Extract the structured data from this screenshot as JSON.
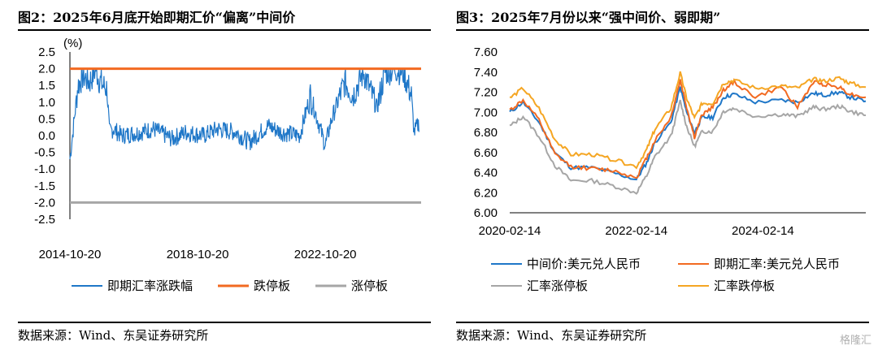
{
  "charts": [
    {
      "title": "图2：2025年6月底开始即期汇价“偏离”中间价",
      "source": "数据来源：Wind、东吴证券研究所",
      "chart_data": {
        "type": "line",
        "unit_label": "(%)",
        "y_ticks": [
          "2.5",
          "2.0",
          "1.5",
          "1.0",
          "0.5",
          "0.0",
          "-0.5",
          "-1.0",
          "-1.5",
          "-2.0",
          "-2.5"
        ],
        "ylim": [
          -2.5,
          2.5
        ],
        "x_ticks": [
          "2014-10-20",
          "2018-10-20",
          "2022-10-20"
        ],
        "x_range": [
          "2014-10-20",
          "2025-10-20"
        ],
        "series": [
          {
            "name": "即期汇率涨跌幅",
            "color": "#1f77c8",
            "x": [
              "2014-10-20",
              "2015-01-20",
              "2015-03-20",
              "2015-06-01",
              "2015-08-11",
              "2015-09-15",
              "2015-11-01",
              "2015-12-20",
              "2016-01-15",
              "2016-03-01",
              "2016-06-01",
              "2017-01-01",
              "2017-06-01",
              "2018-01-01",
              "2018-06-01",
              "2019-01-01",
              "2019-06-01",
              "2020-01-01",
              "2020-06-01",
              "2021-01-01",
              "2021-06-01",
              "2022-01-01",
              "2022-05-01",
              "2022-10-20",
              "2023-01-01",
              "2023-06-01",
              "2023-09-01",
              "2024-01-01",
              "2024-06-01",
              "2024-09-01",
              "2025-01-01",
              "2025-04-01",
              "2025-06-30",
              "2025-08-01",
              "2025-10-01"
            ],
            "y": [
              -0.7,
              1.5,
              1.8,
              1.6,
              2.0,
              1.7,
              1.5,
              1.4,
              0.1,
              0.2,
              0.0,
              0.1,
              0.2,
              -0.1,
              0.1,
              0.0,
              0.2,
              0.1,
              -0.2,
              0.3,
              0.1,
              0.0,
              1.2,
              -0.3,
              0.5,
              1.6,
              1.2,
              1.9,
              0.8,
              1.9,
              2.0,
              1.9,
              1.2,
              0.1,
              0.4
            ]
          },
          {
            "name": "跌停板",
            "color": "#f26a21",
            "x": [
              "2014-10-20",
              "2025-10-20"
            ],
            "y": [
              2.0,
              2.0
            ]
          },
          {
            "name": "涨停板",
            "color": "#a6a6a6",
            "x": [
              "2014-10-20",
              "2025-10-20"
            ],
            "y": [
              -2.0,
              -2.0
            ]
          }
        ],
        "legend_position": "bottom"
      }
    },
    {
      "title": "图3：2025年7月份以来“强中间价、弱即期”",
      "source": "数据来源：Wind、东吴证券研究所",
      "chart_data": {
        "type": "line",
        "y_ticks": [
          "7.60",
          "7.40",
          "7.20",
          "7.00",
          "6.80",
          "6.60",
          "6.40",
          "6.20",
          "6.00"
        ],
        "ylim": [
          6.0,
          7.6
        ],
        "x_ticks": [
          "2020-02-14",
          "2022-02-14",
          "2024-02-14"
        ],
        "x_range": [
          "2020-02-14",
          "2025-09-30"
        ],
        "series": [
          {
            "name": "中间价:美元兑人民币",
            "color": "#1f77c8",
            "x": [
              "2020-02-14",
              "2020-05-01",
              "2020-08-01",
              "2020-11-01",
              "2021-02-01",
              "2021-06-01",
              "2021-10-01",
              "2022-02-14",
              "2022-04-15",
              "2022-06-01",
              "2022-09-01",
              "2022-10-25",
              "2022-12-01",
              "2023-01-15",
              "2023-03-01",
              "2023-05-01",
              "2023-07-01",
              "2023-09-01",
              "2024-01-01",
              "2024-06-01",
              "2024-09-01",
              "2024-12-01",
              "2025-02-01",
              "2025-05-01",
              "2025-07-01",
              "2025-09-30"
            ],
            "y": [
              7.0,
              7.1,
              6.9,
              6.6,
              6.45,
              6.45,
              6.4,
              6.33,
              6.5,
              6.7,
              6.9,
              7.25,
              7.0,
              6.8,
              6.95,
              6.95,
              7.15,
              7.18,
              7.1,
              7.12,
              7.1,
              7.19,
              7.17,
              7.2,
              7.15,
              7.11
            ]
          },
          {
            "name": "即期汇率:美元兑人民币",
            "color": "#f26a21",
            "x": [
              "2020-02-14",
              "2020-05-01",
              "2020-08-01",
              "2020-11-01",
              "2021-02-01",
              "2021-06-01",
              "2021-10-01",
              "2022-02-14",
              "2022-04-15",
              "2022-06-01",
              "2022-09-01",
              "2022-10-25",
              "2022-12-01",
              "2023-01-15",
              "2023-03-01",
              "2023-05-01",
              "2023-07-01",
              "2023-09-01",
              "2024-01-01",
              "2024-06-01",
              "2024-09-01",
              "2024-12-01",
              "2025-02-01",
              "2025-05-01",
              "2025-07-01",
              "2025-09-30"
            ],
            "y": [
              7.02,
              7.12,
              6.92,
              6.58,
              6.46,
              6.44,
              6.42,
              6.35,
              6.55,
              6.72,
              6.95,
              7.32,
              7.05,
              6.75,
              6.98,
              7.05,
              7.22,
              7.3,
              7.15,
              7.25,
              7.05,
              7.3,
              7.28,
              7.25,
              7.18,
              7.15
            ]
          },
          {
            "name": "汇率涨停板",
            "color": "#a6a6a6",
            "x": [
              "2020-02-14",
              "2020-05-01",
              "2020-08-01",
              "2020-11-01",
              "2021-02-01",
              "2021-06-01",
              "2021-10-01",
              "2022-02-14",
              "2022-04-15",
              "2022-06-01",
              "2022-09-01",
              "2022-10-25",
              "2022-12-01",
              "2023-01-15",
              "2023-03-01",
              "2023-05-01",
              "2023-07-01",
              "2023-09-01",
              "2024-01-01",
              "2024-06-01",
              "2024-09-01",
              "2024-12-01",
              "2025-02-01",
              "2025-05-01",
              "2025-07-01",
              "2025-09-30"
            ],
            "y": [
              6.86,
              6.96,
              6.76,
              6.47,
              6.32,
              6.32,
              6.27,
              6.2,
              6.37,
              6.56,
              6.76,
              7.11,
              6.86,
              6.66,
              6.81,
              6.81,
              7.01,
              7.04,
              6.96,
              6.98,
              6.96,
              7.05,
              7.03,
              7.06,
              7.01,
              6.97
            ]
          },
          {
            "name": "汇率跌停板",
            "color": "#f5a623",
            "x": [
              "2020-02-14",
              "2020-05-01",
              "2020-08-01",
              "2020-11-01",
              "2021-02-01",
              "2021-06-01",
              "2021-10-01",
              "2022-02-14",
              "2022-04-15",
              "2022-06-01",
              "2022-09-01",
              "2022-10-25",
              "2022-12-01",
              "2023-01-15",
              "2023-03-01",
              "2023-05-01",
              "2023-07-01",
              "2023-09-01",
              "2024-01-01",
              "2024-06-01",
              "2024-09-01",
              "2024-12-01",
              "2025-02-01",
              "2025-05-01",
              "2025-07-01",
              "2025-09-30"
            ],
            "y": [
              7.14,
              7.24,
              7.04,
              6.73,
              6.58,
              6.58,
              6.53,
              6.46,
              6.63,
              6.83,
              7.04,
              7.39,
              7.14,
              6.94,
              7.09,
              7.09,
              7.29,
              7.32,
              7.24,
              7.26,
              7.24,
              7.33,
              7.31,
              7.34,
              7.29,
              7.25
            ]
          }
        ],
        "legend_position": "bottom"
      }
    }
  ],
  "watermark": "格隆汇"
}
